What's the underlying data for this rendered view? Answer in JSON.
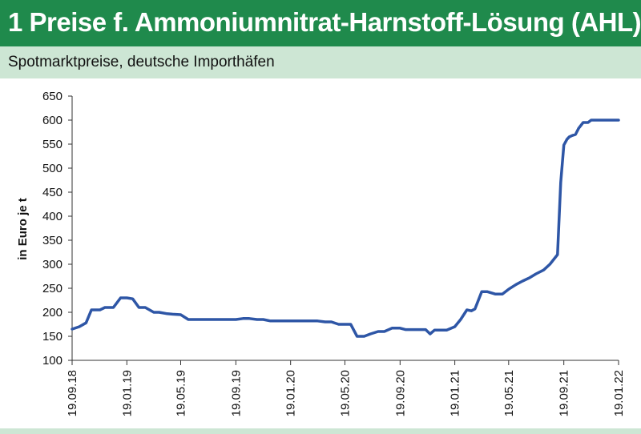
{
  "header": {
    "title": "1 Preise f. Ammoniumnitrat-Harnstoff-Lösung (AHL)",
    "subtitle": "Spotmarktpreise, deutsche Importhäfen"
  },
  "colors": {
    "title_bar": "#1f8a4c",
    "subtitle_bar": "#cde6d4",
    "series_line": "#2e56a6"
  },
  "chart_data": {
    "type": "line",
    "title": "1 Preise f. Ammoniumnitrat-Harnstoff-Lösung (AHL)",
    "subtitle": "Spotmarktpreise, deutsche Importhäfen",
    "xlabel": "",
    "ylabel": "in Euro je t",
    "ylim": [
      100,
      650
    ],
    "yticks": [
      100,
      150,
      200,
      250,
      300,
      350,
      400,
      450,
      500,
      550,
      600,
      650
    ],
    "xlim": [
      "19.09.18",
      "19.01.22"
    ],
    "xticks": [
      "19.09.18",
      "19.01.19",
      "19.05.19",
      "19.09.19",
      "19.01.20",
      "19.05.20",
      "19.09.20",
      "19.01.21",
      "19.05.21",
      "19.09.21",
      "19.01.22"
    ],
    "grid": false,
    "legend": "none",
    "series": [
      {
        "x": [
          "19.09.18",
          "05.10.18",
          "20.10.18",
          "01.11.18",
          "20.11.18",
          "01.12.18",
          "20.12.18",
          "05.01.19",
          "19.01.19",
          "01.02.19",
          "15.02.19",
          "01.03.19",
          "20.03.19",
          "01.04.19",
          "19.04.19",
          "01.05.19",
          "19.05.19",
          "05.06.19",
          "19.06.19",
          "05.07.19",
          "19.07.19",
          "05.08.19",
          "19.08.19",
          "05.09.19",
          "19.09.19",
          "05.10.19",
          "19.10.19",
          "05.11.19",
          "19.11.19",
          "05.12.19",
          "19.12.19",
          "05.01.20",
          "19.01.20",
          "05.02.20",
          "19.02.20",
          "05.03.20",
          "19.03.20",
          "05.04.20",
          "19.04.20",
          "05.05.20",
          "19.05.20",
          "01.06.20",
          "15.06.20",
          "01.07.20",
          "15.07.20",
          "01.08.20",
          "15.08.20",
          "01.09.20",
          "19.09.20",
          "01.10.20",
          "15.10.20",
          "01.11.20",
          "15.11.20",
          "25.11.20",
          "05.12.20",
          "20.12.20",
          "01.01.21",
          "19.01.21",
          "01.02.21",
          "15.02.21",
          "25.02.21",
          "05.03.21",
          "20.03.21",
          "01.04.21",
          "19.04.21",
          "05.05.21",
          "19.05.21",
          "05.06.21",
          "19.06.21",
          "05.07.21",
          "19.07.21",
          "05.08.21",
          "19.08.21",
          "05.09.21",
          "12.09.21",
          "19.09.21",
          "26.09.21",
          "01.10.21",
          "08.10.21",
          "15.10.21",
          "22.10.21",
          "01.11.21",
          "12.11.21",
          "19.11.21",
          "01.12.21",
          "10.12.21",
          "20.12.21",
          "01.01.22",
          "19.01.22"
        ],
        "y": [
          165,
          170,
          178,
          205,
          205,
          210,
          210,
          230,
          230,
          228,
          210,
          210,
          200,
          200,
          197,
          196,
          195,
          185,
          185,
          185,
          185,
          185,
          185,
          185,
          185,
          187,
          187,
          185,
          185,
          182,
          182,
          182,
          182,
          182,
          182,
          182,
          182,
          180,
          180,
          175,
          175,
          175,
          150,
          150,
          155,
          160,
          160,
          167,
          167,
          164,
          164,
          164,
          164,
          155,
          163,
          163,
          163,
          170,
          185,
          205,
          203,
          207,
          243,
          243,
          238,
          238,
          248,
          258,
          265,
          272,
          280,
          288,
          300,
          320,
          470,
          548,
          560,
          565,
          568,
          570,
          583,
          595,
          595,
          600,
          600,
          600,
          600,
          600,
          600
        ]
      }
    ]
  }
}
